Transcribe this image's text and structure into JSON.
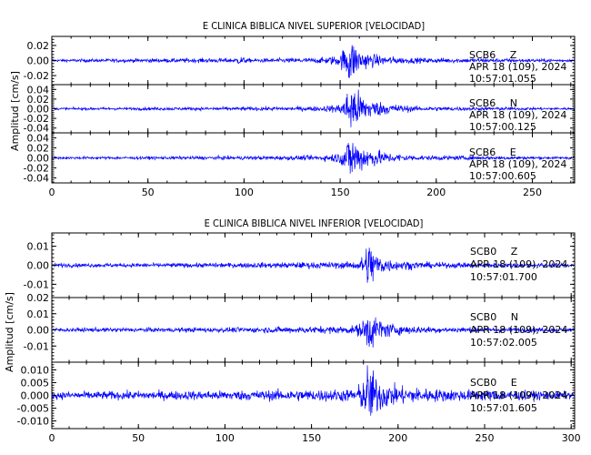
{
  "chart_data": [
    {
      "type": "line",
      "title": "E CLINICA BIBLICA NIVEL SUPERIOR [VELOCIDAD]",
      "ylabel": "Amplitud [cm/s]",
      "xlim": [
        0,
        272
      ],
      "xticks": [
        0,
        50,
        100,
        150,
        200,
        250
      ],
      "traces": [
        {
          "station": "SCB6",
          "component": "Z",
          "date": "APR 18 (109), 2024",
          "time": "10:57:01.055",
          "ylim": [
            -0.032,
            0.032
          ],
          "yticks": [
            0.02,
            0.0,
            -0.02
          ],
          "ytick_labels": [
            "0.02",
            "0.00",
            "-0.02"
          ],
          "color": "#0000ff",
          "envelope": [
            [
              0,
              0.0015
            ],
            [
              40,
              0.002
            ],
            [
              95,
              0.0025
            ],
            [
              98,
              0.005
            ],
            [
              102,
              0.002
            ],
            [
              140,
              0.003
            ],
            [
              150,
              0.006
            ],
            [
              153,
              0.018
            ],
            [
              155,
              0.028
            ],
            [
              157,
              0.02
            ],
            [
              160,
              0.012
            ],
            [
              165,
              0.008
            ],
            [
              172,
              0.005
            ],
            [
              185,
              0.003
            ],
            [
              272,
              0.0015
            ]
          ]
        },
        {
          "station": "SCB6",
          "component": "N",
          "date": "APR 18 (109), 2024",
          "time": "10:57:00.125",
          "ylim": [
            -0.05,
            0.05
          ],
          "yticks": [
            0.04,
            0.02,
            0.0,
            -0.02,
            -0.04
          ],
          "ytick_labels": [
            "0.04",
            "0.02",
            "0.00",
            "-0.02",
            "-0.04"
          ],
          "color": "#0000ff",
          "envelope": [
            [
              0,
              0.002
            ],
            [
              100,
              0.003
            ],
            [
              140,
              0.004
            ],
            [
              150,
              0.008
            ],
            [
              154,
              0.03
            ],
            [
              156,
              0.045
            ],
            [
              158,
              0.035
            ],
            [
              162,
              0.022
            ],
            [
              168,
              0.014
            ],
            [
              175,
              0.009
            ],
            [
              190,
              0.004
            ],
            [
              272,
              0.002
            ]
          ]
        },
        {
          "station": "SCB6",
          "component": "E",
          "date": "APR 18 (109), 2024",
          "time": "10:57:00.605",
          "ylim": [
            -0.05,
            0.05
          ],
          "yticks": [
            0.04,
            0.02,
            0.0,
            -0.02,
            -0.04
          ],
          "ytick_labels": [
            "0.04",
            "0.02",
            "0.00",
            "-0.02",
            "-0.04"
          ],
          "color": "#0000ff",
          "envelope": [
            [
              0,
              0.002
            ],
            [
              100,
              0.003
            ],
            [
              140,
              0.004
            ],
            [
              150,
              0.009
            ],
            [
              154,
              0.03
            ],
            [
              156,
              0.04
            ],
            [
              158,
              0.03
            ],
            [
              162,
              0.02
            ],
            [
              168,
              0.014
            ],
            [
              175,
              0.008
            ],
            [
              190,
              0.004
            ],
            [
              272,
              0.002
            ]
          ]
        }
      ]
    },
    {
      "type": "line",
      "title": "E CLINICA BIBLICA NIVEL INFERIOR [VELOCIDAD]",
      "ylabel": "Amplitud [cm/s]",
      "xlim": [
        0,
        302
      ],
      "xticks": [
        0,
        50,
        100,
        150,
        200,
        250,
        300
      ],
      "traces": [
        {
          "station": "SCB0",
          "component": "Z",
          "date": "APR 18 (109), 2024",
          "time": "10:57:01.700",
          "ylim": [
            -0.017,
            0.017
          ],
          "yticks": [
            0.01,
            0.0,
            -0.01
          ],
          "ytick_labels": [
            "0.01",
            "0.00",
            "-0.01"
          ],
          "color": "#0000ff",
          "envelope": [
            [
              0,
              0.0008
            ],
            [
              100,
              0.001
            ],
            [
              175,
              0.0015
            ],
            [
              180,
              0.004
            ],
            [
              183,
              0.012
            ],
            [
              185,
              0.008
            ],
            [
              188,
              0.005
            ],
            [
              193,
              0.003
            ],
            [
              200,
              0.002
            ],
            [
              220,
              0.0012
            ],
            [
              302,
              0.0008
            ]
          ]
        },
        {
          "station": "SCB0",
          "component": "N",
          "date": "APR 18 (109), 2024",
          "time": "10:57:02.005",
          "ylim": [
            -0.02,
            0.02
          ],
          "yticks": [
            0.02,
            0.01,
            0.0,
            -0.01
          ],
          "ytick_labels": [
            "0.02",
            "0.01",
            "0.00",
            "-0.01"
          ],
          "color": "#0000ff",
          "envelope": [
            [
              0,
              0.001
            ],
            [
              100,
              0.0012
            ],
            [
              175,
              0.002
            ],
            [
              180,
              0.005
            ],
            [
              183,
              0.012
            ],
            [
              185,
              0.009
            ],
            [
              188,
              0.006
            ],
            [
              193,
              0.004
            ],
            [
              200,
              0.0025
            ],
            [
              220,
              0.0015
            ],
            [
              302,
              0.001
            ]
          ]
        },
        {
          "station": "SCB0",
          "component": "E",
          "date": "APR 18 (109), 2024",
          "time": "10:57:01.605",
          "ylim": [
            -0.013,
            0.013
          ],
          "yticks": [
            0.01,
            0.005,
            0.0,
            -0.005,
            -0.01
          ],
          "ytick_labels": [
            "0.010",
            "0.005",
            "0.000",
            "-0.005",
            "-0.010"
          ],
          "color": "#0000ff",
          "envelope": [
            [
              0,
              0.0012
            ],
            [
              100,
              0.0015
            ],
            [
              175,
              0.002
            ],
            [
              180,
              0.005
            ],
            [
              183,
              0.011
            ],
            [
              185,
              0.008
            ],
            [
              188,
              0.006
            ],
            [
              193,
              0.004
            ],
            [
              200,
              0.003
            ],
            [
              220,
              0.002
            ],
            [
              302,
              0.0012
            ]
          ]
        }
      ]
    }
  ]
}
